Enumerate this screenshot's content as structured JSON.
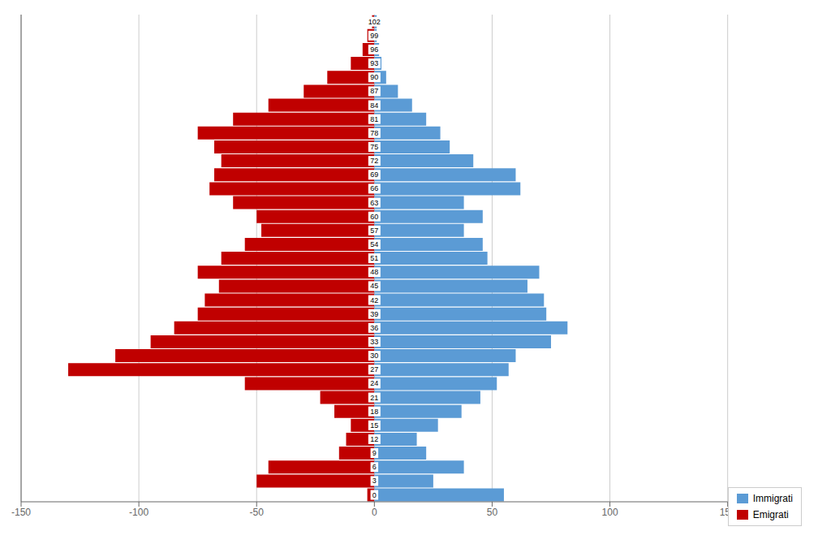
{
  "chart_data": {
    "type": "bar",
    "orientation": "horizontal",
    "categories": [
      "0",
      "3",
      "6",
      "9",
      "12",
      "15",
      "18",
      "21",
      "24",
      "27",
      "30",
      "33",
      "36",
      "39",
      "42",
      "45",
      "48",
      "51",
      "54",
      "57",
      "60",
      "63",
      "66",
      "69",
      "72",
      "75",
      "78",
      "81",
      "84",
      "87",
      "90",
      "93",
      "96",
      "99",
      "102"
    ],
    "series": [
      {
        "name": "Immigrati",
        "color": "#5B9BD5",
        "values": [
          55,
          25,
          38,
          22,
          18,
          27,
          37,
          45,
          52,
          57,
          60,
          75,
          82,
          73,
          72,
          65,
          70,
          48,
          46,
          38,
          46,
          38,
          62,
          60,
          42,
          32,
          28,
          22,
          16,
          10,
          5,
          3,
          2,
          1,
          1
        ]
      },
      {
        "name": "Emigrati",
        "color": "#C00000",
        "values": [
          -3,
          -50,
          -45,
          -15,
          -12,
          -10,
          -17,
          -23,
          -55,
          -130,
          -110,
          -95,
          -85,
          -75,
          -72,
          -66,
          -75,
          -65,
          -55,
          -48,
          -50,
          -60,
          -70,
          -68,
          -65,
          -68,
          -75,
          -60,
          -45,
          -30,
          -20,
          -10,
          -5,
          -3,
          -1
        ]
      }
    ],
    "xlim": [
      -150,
      150
    ],
    "xticks": [
      -150,
      -100,
      -50,
      0,
      50,
      100,
      150
    ],
    "grid": true,
    "legend": "lower right",
    "tick_labels": "x"
  }
}
